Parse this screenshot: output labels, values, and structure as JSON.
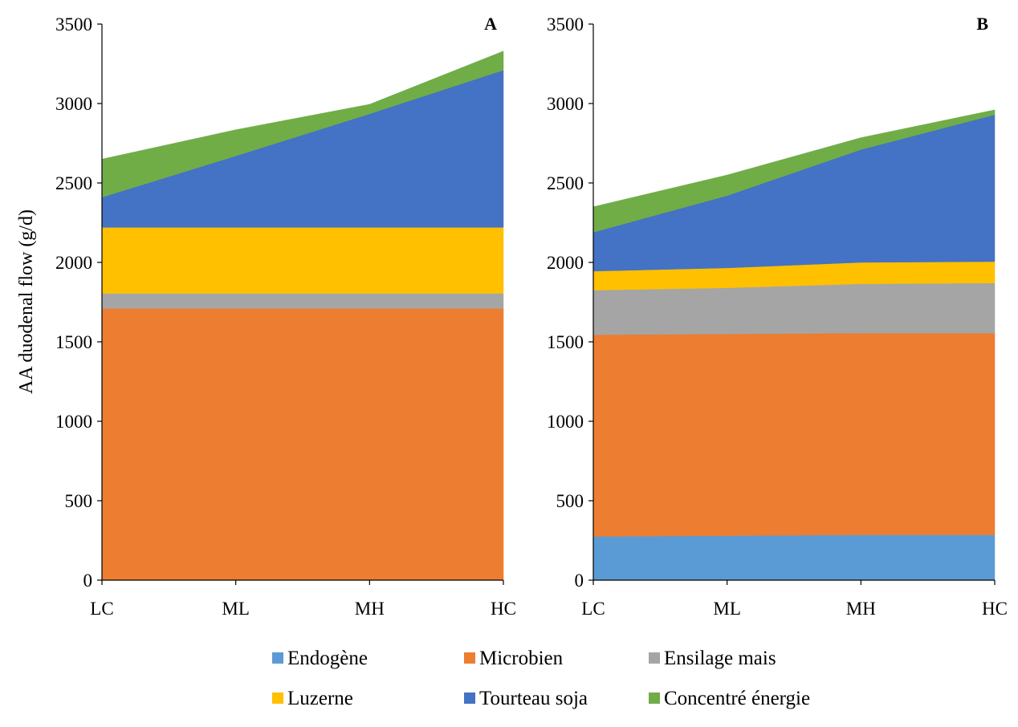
{
  "chart_data": {
    "type": "area",
    "stacked": true,
    "categories": [
      "LC",
      "ML",
      "MH",
      "HC"
    ],
    "ylabel": "AA duodenal flow (g/d)",
    "ylim": [
      0,
      3500
    ],
    "yticks": [
      0,
      500,
      1000,
      1500,
      2000,
      2500,
      3000,
      3500
    ],
    "grid": false,
    "legend_position": "bottom",
    "series_meta": [
      {
        "name": "Endogène",
        "color": "#5B9BD5"
      },
      {
        "name": "Microbien",
        "color": "#ED7D31"
      },
      {
        "name": "Ensilage mais",
        "color": "#A5A5A5"
      },
      {
        "name": "Luzerne",
        "color": "#FFC000"
      },
      {
        "name": "Tourteau soja",
        "color": "#4472C4"
      },
      {
        "name": "Concentré énergie",
        "color": "#70AD47"
      }
    ],
    "panels": [
      {
        "label": "A",
        "series": [
          {
            "name": "Endogène",
            "values": [
              0,
              0,
              0,
              0
            ]
          },
          {
            "name": "Microbien",
            "values": [
              1710,
              1710,
              1710,
              1710
            ]
          },
          {
            "name": "Ensilage mais",
            "values": [
              95,
              95,
              95,
              95
            ]
          },
          {
            "name": "Luzerne",
            "values": [
              415,
              415,
              415,
              415
            ]
          },
          {
            "name": "Tourteau soja",
            "values": [
              190,
              450,
              715,
              990
            ]
          },
          {
            "name": "Concentré énergie",
            "values": [
              240,
              165,
              60,
              120
            ]
          }
        ]
      },
      {
        "label": "B",
        "series": [
          {
            "name": "Endogène",
            "values": [
              275,
              280,
              285,
              285
            ]
          },
          {
            "name": "Microbien",
            "values": [
              1270,
              1270,
              1270,
              1270
            ]
          },
          {
            "name": "Ensilage mais",
            "values": [
              280,
              290,
              310,
              315
            ]
          },
          {
            "name": "Luzerne",
            "values": [
              120,
              125,
              135,
              135
            ]
          },
          {
            "name": "Tourteau soja",
            "values": [
              245,
              455,
              710,
              925
            ]
          },
          {
            "name": "Concentré énergie",
            "values": [
              160,
              130,
              75,
              30
            ]
          }
        ]
      }
    ]
  }
}
